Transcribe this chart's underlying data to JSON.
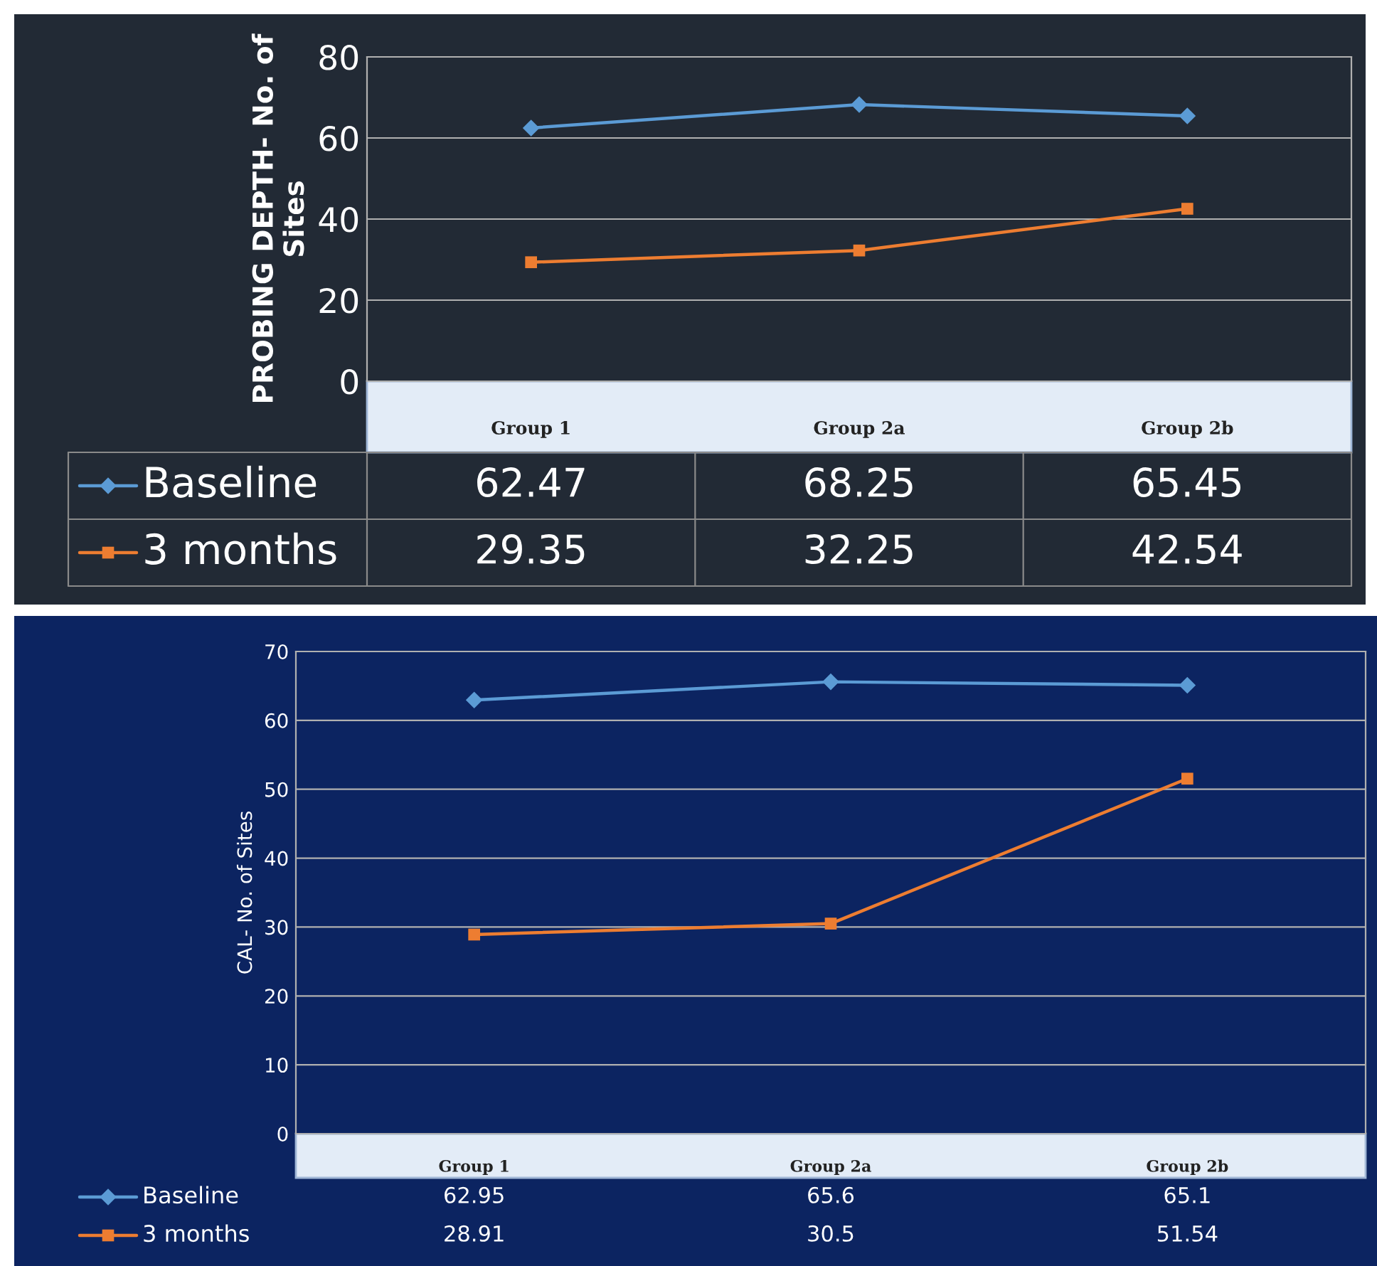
{
  "chart_data": [
    {
      "type": "line",
      "ylabel": "PROBING DEPTH- No. of Sites",
      "categories": [
        "Group 1",
        "Group 2a",
        "Group 2b"
      ],
      "ylim": [
        0,
        80
      ],
      "yticks": [
        0,
        20,
        40,
        60,
        80
      ],
      "grid": "y",
      "data_labels": true,
      "legend": "bottom",
      "series": [
        {
          "name": "Baseline",
          "color": "#5b9bd5",
          "marker": "diamond",
          "values": [
            62.47,
            68.25,
            65.45
          ]
        },
        {
          "name": "3 months",
          "color": "#ed7d31",
          "marker": "square",
          "values": [
            29.35,
            32.25,
            42.54
          ]
        }
      ]
    },
    {
      "type": "line",
      "ylabel": "CAL- No. of Sites",
      "categories": [
        "Group 1",
        "Group 2a",
        "Group 2b"
      ],
      "ylim": [
        0,
        70
      ],
      "yticks": [
        0,
        10,
        20,
        30,
        40,
        50,
        60,
        70
      ],
      "grid": "y",
      "data_labels": true,
      "legend": "bottom",
      "series": [
        {
          "name": "Baseline",
          "color": "#5b9bd5",
          "marker": "diamond",
          "values": [
            62.95,
            65.6,
            65.1
          ]
        },
        {
          "name": "3 months",
          "color": "#ed7d31",
          "marker": "square",
          "values": [
            28.91,
            30.5,
            51.54
          ]
        }
      ]
    }
  ]
}
